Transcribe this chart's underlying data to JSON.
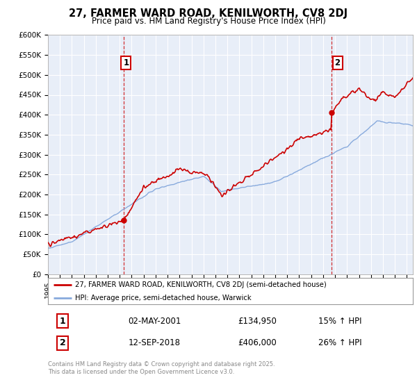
{
  "title": "27, FARMER WARD ROAD, KENILWORTH, CV8 2DJ",
  "subtitle": "Price paid vs. HM Land Registry's House Price Index (HPI)",
  "ylim": [
    0,
    600000
  ],
  "yticks": [
    0,
    50000,
    100000,
    150000,
    200000,
    250000,
    300000,
    350000,
    400000,
    450000,
    500000,
    550000,
    600000
  ],
  "ytick_labels": [
    "£0",
    "£50K",
    "£100K",
    "£150K",
    "£200K",
    "£250K",
    "£300K",
    "£350K",
    "£400K",
    "£450K",
    "£500K",
    "£550K",
    "£600K"
  ],
  "purchase1": {
    "date": "2001-05-02",
    "price": 134950,
    "label": "1",
    "hpi_pct": "15% ↑ HPI",
    "display_date": "02-MAY-2001"
  },
  "purchase2": {
    "date": "2018-09-12",
    "price": 406000,
    "label": "2",
    "hpi_pct": "26% ↑ HPI",
    "display_date": "12-SEP-2018"
  },
  "legend_line1": "27, FARMER WARD ROAD, KENILWORTH, CV8 2DJ (semi-detached house)",
  "legend_line2": "HPI: Average price, semi-detached house, Warwick",
  "footnote": "Contains HM Land Registry data © Crown copyright and database right 2025.\nThis data is licensed under the Open Government Licence v3.0.",
  "price_color": "#cc0000",
  "hpi_color": "#88aadd",
  "bg_color": "#ffffff",
  "grid_color": "#cccccc",
  "annotation_box_color": "#cc0000",
  "p1_date": 2001.33,
  "p2_date": 2018.7,
  "xmin": 1995,
  "xmax": 2025.5
}
